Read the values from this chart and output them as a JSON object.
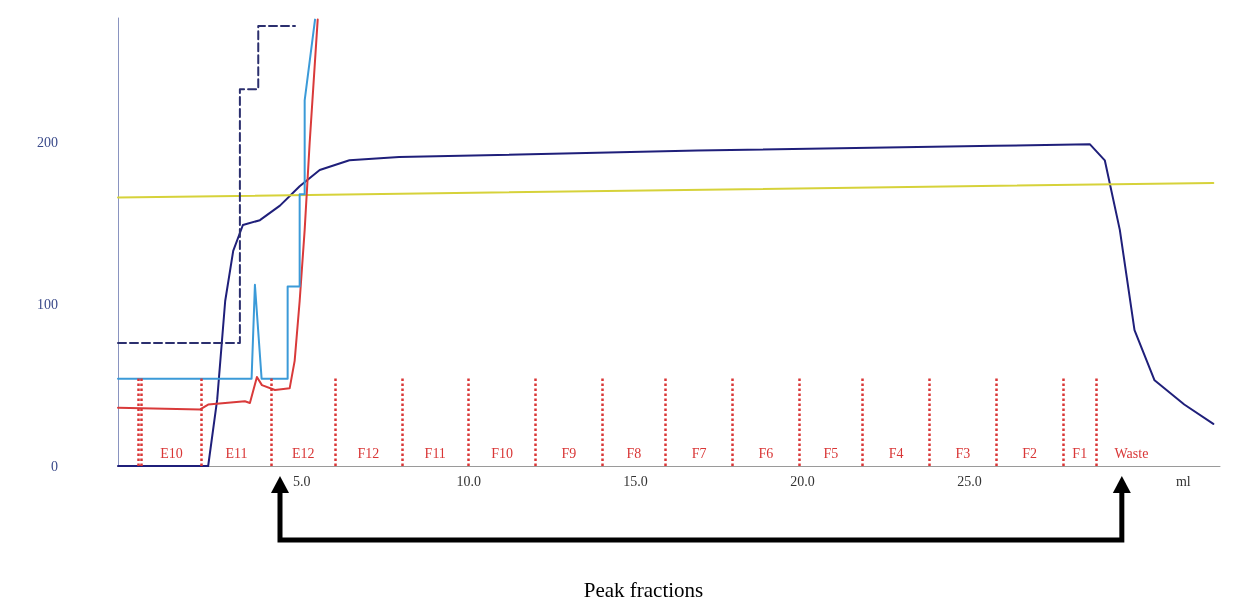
{
  "chart_data": {
    "type": "line",
    "xlabel": "ml",
    "xlim": [
      -0.5,
      32.5
    ],
    "xticks": [
      {
        "value": 5,
        "label": "5.0"
      },
      {
        "value": 10,
        "label": "10.0"
      },
      {
        "value": 15,
        "label": "15.0"
      },
      {
        "value": 20,
        "label": "20.0"
      },
      {
        "value": 25,
        "label": "25.0"
      }
    ],
    "ylim": [
      0,
      277
    ],
    "yticks": [
      0,
      100,
      200
    ],
    "grid": false,
    "marker": "none",
    "series": [
      {
        "color": "#1f1f7a",
        "x": [
          -0.5,
          2.2,
          2.47,
          2.71,
          2.95,
          3.24,
          3.75,
          4.35,
          4.94,
          5.54,
          6.43,
          7.92,
          16.85,
          25.77,
          28.6,
          29.05,
          29.5,
          29.94,
          30.54,
          31.43,
          32.3
        ],
        "values": [
          0,
          0,
          41,
          102,
          133,
          149,
          152,
          161,
          173,
          183,
          189,
          191,
          195,
          198,
          199,
          189,
          146,
          84,
          53,
          38,
          26
        ]
      },
      {
        "color": "#d6d23a",
        "x": [
          -0.5,
          32.3
        ],
        "values": [
          166,
          175
        ]
      },
      {
        "color": "#d93a3a",
        "x": [
          -0.5,
          1.96,
          2.2,
          3.3,
          3.45,
          3.66,
          3.81,
          4.2,
          4.64,
          4.79,
          4.94,
          5.09,
          5.24,
          5.48
        ],
        "values": [
          36,
          35,
          38,
          40,
          39,
          55,
          50,
          47,
          48,
          65,
          102,
          146,
          200,
          276
        ]
      },
      {
        "color": "#3b9ad8",
        "x": [
          -0.5,
          3.5,
          3.6,
          3.8,
          4.58,
          4.58,
          4.94,
          4.94,
          5.09,
          5.09,
          5.4
        ],
        "values": [
          54,
          54,
          112,
          54,
          54,
          111,
          111,
          168,
          168,
          226,
          276
        ]
      },
      {
        "color": "#2b2f6e",
        "line_style": "dashed",
        "x": [
          -0.5,
          3.15,
          3.15,
          3.7,
          3.7,
          4.8
        ],
        "values": [
          76,
          76,
          233,
          233,
          272,
          272
        ]
      }
    ],
    "ref_lines": [
      {
        "axis": "x",
        "value": 0.1,
        "color": "#d93636",
        "line_style": "dotted"
      },
      {
        "axis": "x",
        "value": 0.2,
        "label": "E10",
        "color": "#d93636",
        "line_style": "dotted"
      },
      {
        "axis": "x",
        "value": 2.0,
        "label": "E11",
        "color": "#d93636",
        "line_style": "dotted"
      },
      {
        "axis": "x",
        "value": 4.1,
        "label": "E12",
        "color": "#d93636",
        "line_style": "dotted"
      },
      {
        "axis": "x",
        "value": 6.0,
        "label": "F12",
        "color": "#d93636",
        "line_style": "dotted"
      },
      {
        "axis": "x",
        "value": 8.0,
        "label": "F11",
        "color": "#d93636",
        "line_style": "dotted"
      },
      {
        "axis": "x",
        "value": 10.0,
        "label": "F10",
        "color": "#d93636",
        "line_style": "dotted"
      },
      {
        "axis": "x",
        "value": 12.0,
        "label": "F9",
        "color": "#d93636",
        "line_style": "dotted"
      },
      {
        "axis": "x",
        "value": 14.0,
        "label": "F8",
        "color": "#d93636",
        "line_style": "dotted"
      },
      {
        "axis": "x",
        "value": 15.9,
        "label": "F7",
        "color": "#d93636",
        "line_style": "dotted"
      },
      {
        "axis": "x",
        "value": 17.9,
        "label": "F6",
        "color": "#d93636",
        "line_style": "dotted"
      },
      {
        "axis": "x",
        "value": 19.9,
        "label": "F5",
        "color": "#d93636",
        "line_style": "dotted"
      },
      {
        "axis": "x",
        "value": 21.8,
        "label": "F4",
        "color": "#d93636",
        "line_style": "dotted"
      },
      {
        "axis": "x",
        "value": 23.8,
        "label": "F3",
        "color": "#d93636",
        "line_style": "dotted"
      },
      {
        "axis": "x",
        "value": 25.8,
        "label": "F2",
        "color": "#d93636",
        "line_style": "dotted"
      },
      {
        "axis": "x",
        "value": 27.8,
        "label": "F1",
        "color": "#d93636",
        "line_style": "dotted"
      },
      {
        "axis": "x",
        "value": 28.8,
        "label": "Waste",
        "color": "#d93636",
        "line_style": "dotted"
      }
    ],
    "annotations": [
      "Peak fractions"
    ]
  }
}
